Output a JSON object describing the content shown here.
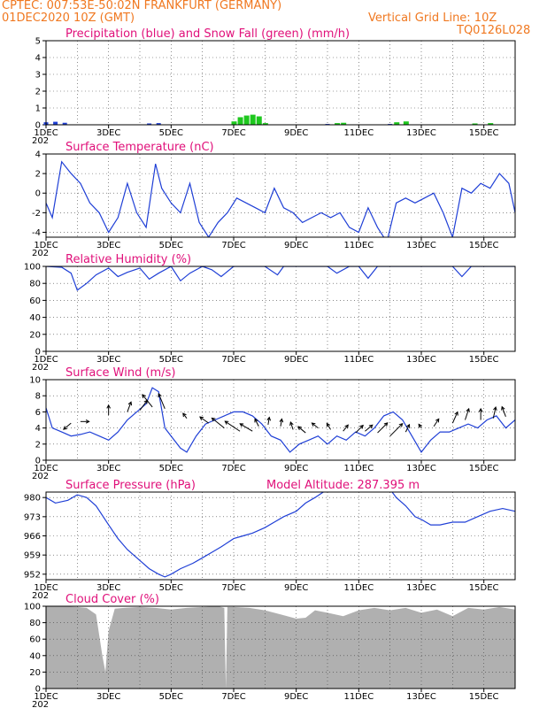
{
  "header": {
    "line1": "CPTEC:   007:53E-50:02N   FRANKFURT (GERMANY)",
    "line2_left": "01DEC2020 10Z (GMT)",
    "line2_right": "Vertical Grid Line: 10Z",
    "line3_right": "TQ0126L028",
    "color": "#f07820"
  },
  "x_ticks": [
    "1DEC",
    "3DEC",
    "5DEC",
    "7DEC",
    "9DEC",
    "11DEC",
    "13DEC",
    "15DEC"
  ],
  "year_fragment": "202",
  "colors": {
    "line": "#1f3fd6",
    "snow": "#1ec81e",
    "precip": "#1f3fd6",
    "cloud": "#b0b0b0",
    "title": "#e0107a",
    "arrow": "#000000"
  },
  "chart_data": [
    {
      "type": "area",
      "title": "Precipitation (blue) and Snow Fall (green) (mm/h)",
      "ylim": [
        0,
        5
      ],
      "yticks": [
        "0",
        "1",
        "2",
        "3",
        "4",
        "5"
      ],
      "precip": [
        [
          1.0,
          0.15
        ],
        [
          1.3,
          0.18
        ],
        [
          1.6,
          0.12
        ],
        [
          4.3,
          0.08
        ],
        [
          4.6,
          0.1
        ],
        [
          8.0,
          0.05
        ],
        [
          10.0,
          0.05
        ],
        [
          12.0,
          0.05
        ]
      ],
      "snow": [
        [
          7.0,
          0.2
        ],
        [
          7.2,
          0.45
        ],
        [
          7.4,
          0.55
        ],
        [
          7.6,
          0.6
        ],
        [
          7.8,
          0.5
        ],
        [
          8.0,
          0.1
        ],
        [
          10.3,
          0.1
        ],
        [
          10.5,
          0.12
        ],
        [
          12.2,
          0.15
        ],
        [
          12.5,
          0.2
        ],
        [
          14.7,
          0.08
        ],
        [
          15.2,
          0.1
        ]
      ]
    },
    {
      "type": "line",
      "title": "Surface Temperature (nC)",
      "ylim": [
        -4.5,
        4
      ],
      "yticks": [
        "-4",
        "-2",
        "0",
        "2",
        "4"
      ],
      "x": [
        1.0,
        1.2,
        1.5,
        1.8,
        2.1,
        2.4,
        2.7,
        3.0,
        3.3,
        3.6,
        3.9,
        4.2,
        4.5,
        4.7,
        5.0,
        5.3,
        5.6,
        5.9,
        6.2,
        6.5,
        6.8,
        7.1,
        7.4,
        7.7,
        8.0,
        8.3,
        8.6,
        8.9,
        9.2,
        9.5,
        9.8,
        10.1,
        10.4,
        10.7,
        11.0,
        11.3,
        11.6,
        11.9,
        12.2,
        12.5,
        12.8,
        13.1,
        13.4,
        13.7,
        14.0,
        14.3,
        14.6,
        14.9,
        15.2,
        15.5,
        15.8,
        16.0
      ],
      "values": [
        -1.0,
        -2.5,
        3.2,
        2.0,
        1.0,
        -1.0,
        -2.0,
        -4.0,
        -2.5,
        1.0,
        -2.0,
        -3.5,
        3.0,
        0.5,
        -1.0,
        -2.0,
        1.0,
        -3.0,
        -4.5,
        -3.0,
        -2.0,
        -0.5,
        -1.0,
        -1.5,
        -2.0,
        0.5,
        -1.5,
        -2.0,
        -3.0,
        -2.5,
        -2.0,
        -2.5,
        -2.0,
        -3.5,
        -4.0,
        -1.5,
        -3.5,
        -5.0,
        -1.0,
        -0.5,
        -1.0,
        -0.5,
        0.0,
        -2.0,
        -4.5,
        0.5,
        0.0,
        1.0,
        0.5,
        2.0,
        1.0,
        -2.0
      ]
    },
    {
      "type": "line",
      "title": "Relative Humidity (%)",
      "ylim": [
        0,
        100
      ],
      "yticks": [
        "0",
        "20",
        "40",
        "60",
        "80",
        "100"
      ],
      "x": [
        1.0,
        1.5,
        1.8,
        2.0,
        2.3,
        2.6,
        3.0,
        3.3,
        3.6,
        4.0,
        4.3,
        4.6,
        5.0,
        5.3,
        5.6,
        6.0,
        6.3,
        6.6,
        7.0,
        8.0,
        8.4,
        8.6,
        9.0,
        10.0,
        10.3,
        10.7,
        11.0,
        11.3,
        11.6,
        12.0,
        13.0,
        14.0,
        14.3,
        14.6,
        15.0,
        16.0
      ],
      "values": [
        100,
        99,
        92,
        72,
        80,
        90,
        98,
        88,
        93,
        98,
        85,
        92,
        100,
        83,
        92,
        100,
        96,
        88,
        100,
        100,
        90,
        100,
        100,
        100,
        92,
        100,
        100,
        86,
        100,
        100,
        100,
        100,
        88,
        100,
        100,
        100
      ]
    },
    {
      "type": "line",
      "title": "Surface Wind (m/s)",
      "ylim": [
        0,
        10
      ],
      "yticks": [
        "0",
        "2",
        "4",
        "6",
        "8",
        "10"
      ],
      "x": [
        1.0,
        1.2,
        1.5,
        1.8,
        2.1,
        2.4,
        2.7,
        3.0,
        3.3,
        3.6,
        3.9,
        4.2,
        4.4,
        4.6,
        4.8,
        5.0,
        5.3,
        5.5,
        5.8,
        6.1,
        6.4,
        6.7,
        7.0,
        7.3,
        7.6,
        7.9,
        8.2,
        8.5,
        8.8,
        9.1,
        9.4,
        9.7,
        10.0,
        10.3,
        10.6,
        10.9,
        11.2,
        11.5,
        11.8,
        12.1,
        12.4,
        12.7,
        13.0,
        13.3,
        13.6,
        13.9,
        14.2,
        14.5,
        14.8,
        15.1,
        15.4,
        15.7,
        16.0
      ],
      "values": [
        6.5,
        4.0,
        3.5,
        3.0,
        3.2,
        3.5,
        3.0,
        2.5,
        3.5,
        5.0,
        6.0,
        7.0,
        9.0,
        8.5,
        4.0,
        3.0,
        1.5,
        1.0,
        3.0,
        4.5,
        5.0,
        5.5,
        6.0,
        6.0,
        5.5,
        4.5,
        3.0,
        2.5,
        1.0,
        2.0,
        2.5,
        3.0,
        2.0,
        3.0,
        2.5,
        3.5,
        3.0,
        4.0,
        5.5,
        6.0,
        5.0,
        3.0,
        1.0,
        2.5,
        3.5,
        3.5,
        4.0,
        4.5,
        4.0,
        5.0,
        5.5,
        4.0,
        5.0
      ],
      "arrows": [
        [
          1.8,
          4.6,
          -0.6,
          -0.5
        ],
        [
          2.1,
          4.8,
          0.7,
          0.0
        ],
        [
          3.0,
          5.6,
          0.0,
          0.8
        ],
        [
          3.6,
          6.0,
          0.3,
          0.8
        ],
        [
          4.0,
          6.2,
          0.6,
          0.8
        ],
        [
          4.4,
          6.6,
          -0.8,
          1.0
        ],
        [
          4.8,
          6.4,
          -0.5,
          1.2
        ],
        [
          5.5,
          5.2,
          -0.3,
          0.4
        ],
        [
          6.2,
          4.6,
          -0.7,
          0.5
        ],
        [
          6.7,
          4.0,
          -1.0,
          0.8
        ],
        [
          7.2,
          3.6,
          -1.2,
          0.8
        ],
        [
          7.6,
          3.6,
          -1.0,
          0.6
        ],
        [
          7.8,
          4.2,
          -0.3,
          0.6
        ],
        [
          8.1,
          4.4,
          0.1,
          0.6
        ],
        [
          8.5,
          4.2,
          0.1,
          0.6
        ],
        [
          8.9,
          3.8,
          -0.2,
          0.6
        ],
        [
          9.3,
          3.4,
          -0.6,
          0.5
        ],
        [
          9.7,
          4.0,
          -0.5,
          0.4
        ],
        [
          10.1,
          3.8,
          -0.3,
          0.5
        ],
        [
          10.5,
          3.6,
          0.4,
          0.5
        ],
        [
          10.9,
          3.4,
          0.6,
          0.6
        ],
        [
          11.2,
          3.6,
          0.6,
          0.5
        ],
        [
          11.6,
          3.4,
          0.8,
          0.8
        ],
        [
          12.0,
          3.0,
          1.0,
          1.0
        ],
        [
          12.5,
          3.5,
          0.3,
          0.6
        ],
        [
          13.0,
          4.0,
          -0.2,
          0.3
        ],
        [
          13.4,
          4.2,
          0.4,
          0.6
        ],
        [
          14.0,
          4.6,
          0.4,
          0.9
        ],
        [
          14.4,
          5.0,
          0.3,
          0.9
        ],
        [
          14.9,
          5.0,
          0.0,
          0.9
        ],
        [
          15.3,
          5.2,
          0.2,
          0.9
        ],
        [
          15.7,
          5.4,
          -0.3,
          0.8
        ]
      ]
    },
    {
      "type": "line",
      "title": "Surface Pressure (hPa)",
      "subtitle": "Model Altitude: 287.395  m",
      "ylim": [
        950,
        982
      ],
      "yticks": [
        "952",
        "959",
        "966",
        "973",
        "980"
      ],
      "x": [
        1.0,
        1.3,
        1.7,
        2.0,
        2.3,
        2.6,
        3.0,
        3.3,
        3.6,
        4.0,
        4.3,
        4.6,
        4.8,
        5.0,
        5.3,
        5.7,
        6.0,
        6.3,
        6.6,
        7.0,
        7.3,
        7.6,
        8.0,
        8.3,
        8.6,
        9.0,
        9.3,
        9.6,
        10.0,
        12.0,
        12.2,
        12.5,
        12.8,
        13.0,
        13.3,
        13.6,
        14.0,
        14.4,
        14.8,
        15.2,
        15.6,
        16.0
      ],
      "values": [
        980,
        978,
        979,
        981,
        980,
        977,
        970,
        965,
        961,
        957,
        954,
        952,
        951,
        952,
        954,
        956,
        958,
        960,
        962,
        965,
        966,
        967,
        969,
        971,
        973,
        975,
        978,
        980,
        983,
        983,
        980,
        977,
        973,
        972,
        970,
        970,
        971,
        971,
        973,
        975,
        976,
        975
      ]
    },
    {
      "type": "area",
      "title": "Cloud Cover (%)",
      "ylim": [
        0,
        100
      ],
      "yticks": [
        "0",
        "20",
        "40",
        "60",
        "80",
        "100"
      ],
      "x": [
        1.0,
        1.5,
        2.0,
        2.3,
        2.6,
        2.8,
        2.9,
        3.0,
        3.2,
        3.5,
        4.0,
        4.5,
        5.0,
        5.5,
        6.0,
        6.5,
        6.7,
        6.75,
        6.8,
        7.0,
        7.5,
        8.0,
        8.5,
        9.0,
        9.3,
        9.6,
        10.0,
        10.5,
        11.0,
        11.5,
        12.0,
        12.5,
        13.0,
        13.5,
        14.0,
        14.5,
        15.0,
        15.5,
        16.0
      ],
      "values": [
        100,
        100,
        99,
        98,
        90,
        40,
        20,
        70,
        97,
        98,
        99,
        98,
        96,
        98,
        99,
        100,
        98,
        0,
        99,
        99,
        98,
        95,
        90,
        85,
        86,
        95,
        92,
        88,
        95,
        98,
        95,
        98,
        92,
        96,
        88,
        98,
        96,
        99,
        96
      ]
    }
  ]
}
